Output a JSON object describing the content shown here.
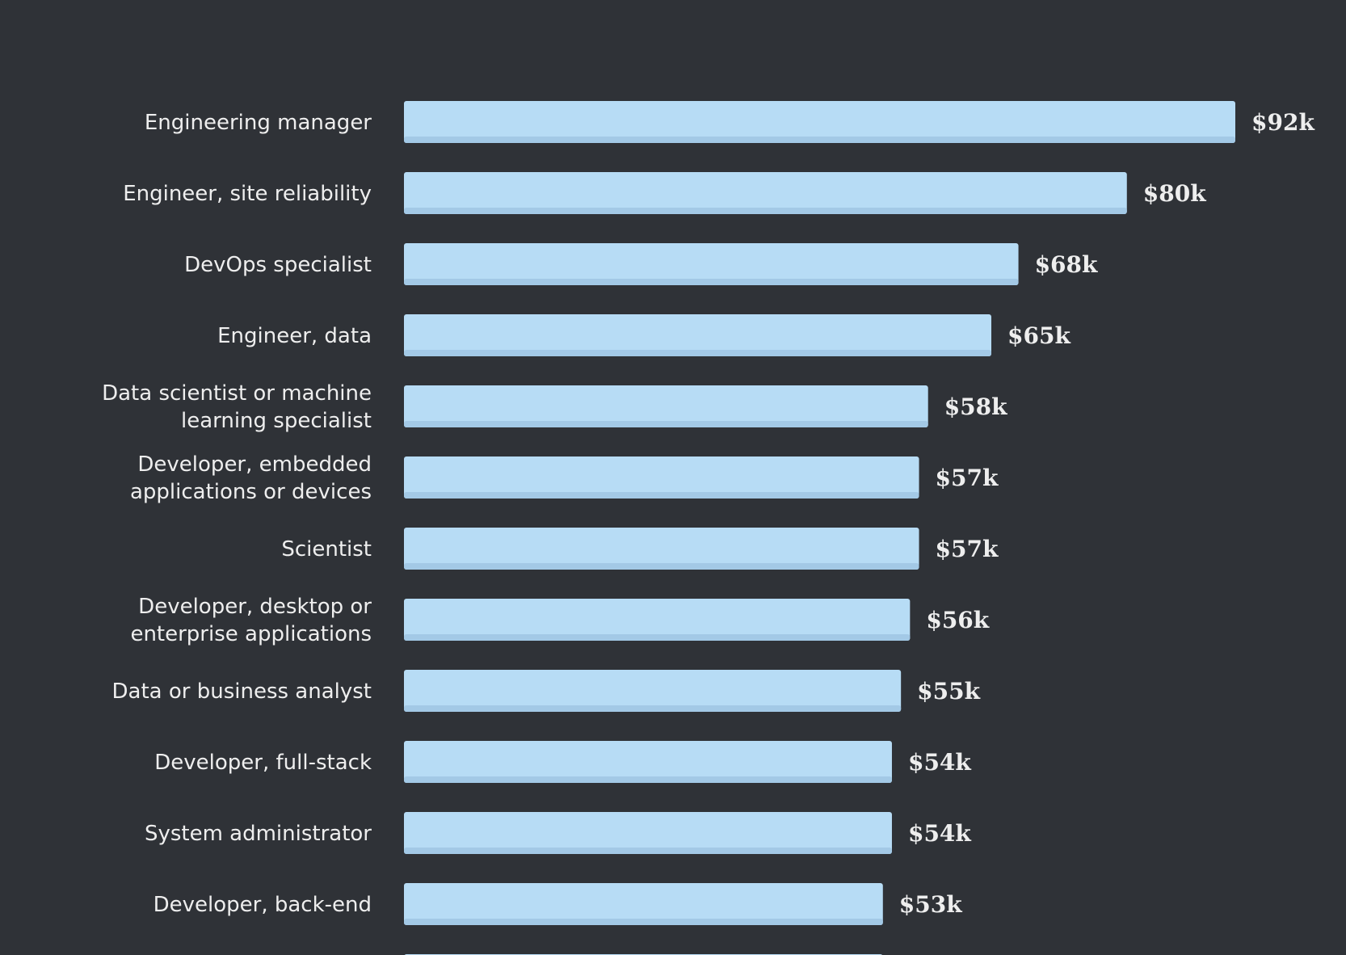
{
  "colors": {
    "background": "#2f3237",
    "bar": "#b7dcf5",
    "bar_shadow": "#a3c9e6",
    "text": "#eeeeee"
  },
  "chart_data": {
    "type": "bar",
    "orientation": "horizontal",
    "title": "",
    "xlabel": "",
    "ylabel": "",
    "grid": false,
    "legend": "none",
    "xlim": [
      0,
      92
    ],
    "categories": [
      "Engineering manager",
      "Engineer, site reliability",
      "DevOps specialist",
      "Engineer, data",
      "Data scientist or machine learning specialist",
      "Developer, embedded applications or devices",
      "Scientist",
      "Developer, desktop or enterprise applications",
      "Data or business analyst",
      "Developer, full-stack",
      "System administrator",
      "Developer, back-end"
    ],
    "values": [
      92,
      80,
      68,
      65,
      58,
      57,
      57,
      56,
      55,
      54,
      54,
      53
    ],
    "value_labels": [
      "$92k",
      "$80k",
      "$68k",
      "$65k",
      "$58k",
      "$57k",
      "$57k",
      "$56k",
      "$55k",
      "$54k",
      "$54k",
      "$53k"
    ],
    "partial_next_bar_value": 53
  }
}
